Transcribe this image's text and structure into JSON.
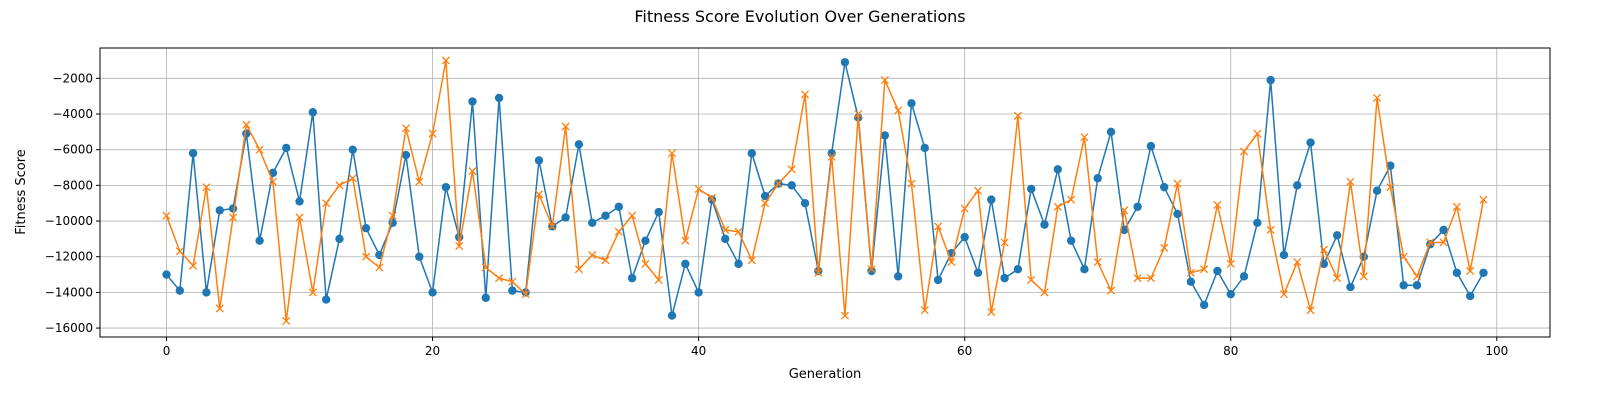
{
  "chart_data": {
    "type": "line",
    "title": "Fitness Score Evolution Over Generations",
    "xlabel": "Generation",
    "ylabel": "Fitness Score",
    "xlim": [
      -5,
      104
    ],
    "ylim": [
      -16500,
      -300
    ],
    "xticks": [
      0,
      20,
      40,
      60,
      80,
      100
    ],
    "yticks": [
      -16000,
      -14000,
      -12000,
      -10000,
      -8000,
      -6000,
      -4000,
      -2000
    ],
    "grid": true,
    "legend": "none",
    "colors": {
      "series_1": "#1f77b4",
      "series_2": "#ff7f0e",
      "grid": "#b0b0b0"
    },
    "series": [
      {
        "marker": "circle",
        "x": [
          0,
          1,
          2,
          3,
          4,
          5,
          6,
          7,
          8,
          9,
          10,
          11,
          12,
          13,
          14,
          15,
          16,
          17,
          18,
          19,
          20,
          21,
          22,
          23,
          24,
          25,
          26,
          27,
          28,
          29,
          30,
          31,
          32,
          33,
          34,
          35,
          36,
          37,
          38,
          39,
          40,
          41,
          42,
          43,
          44,
          45,
          46,
          47,
          48,
          49,
          50,
          51,
          52,
          53,
          54,
          55,
          56,
          57,
          58,
          59,
          60,
          61,
          62,
          63,
          64,
          65,
          66,
          67,
          68,
          69,
          70,
          71,
          72,
          73,
          74,
          75,
          76,
          77,
          78,
          79,
          80,
          81,
          82,
          83,
          84,
          85,
          86,
          87,
          88,
          89,
          90,
          91,
          92,
          93,
          94,
          95,
          96,
          97,
          98,
          99
        ],
        "values": [
          -13000,
          -13900,
          -6200,
          -14000,
          -9400,
          -9300,
          -5100,
          -11100,
          -7300,
          -5900,
          -8900,
          -3900,
          -14400,
          -11000,
          -6000,
          -10400,
          -11900,
          -10100,
          -6300,
          -12000,
          -14000,
          -8100,
          -10900,
          -3300,
          -14300,
          -3100,
          -13900,
          -14000,
          -6600,
          -10300,
          -9800,
          -5700,
          -10100,
          -9700,
          -9200,
          -13200,
          -11100,
          -9500,
          -15300,
          -12400,
          -14000,
          -8800,
          -11000,
          -12400,
          -6200,
          -8600,
          -7900,
          -8000,
          -9000,
          -12800,
          -6200,
          -1100,
          -4200,
          -12800,
          -5200,
          -13100,
          -3400,
          -5900,
          -13300,
          -11800,
          -10900,
          -12900,
          -8800,
          -13200,
          -12700,
          -8200,
          -10200,
          -7100,
          -11100,
          -12700,
          -7600,
          -5000,
          -10500,
          -9200,
          -5800,
          -8100,
          -9600,
          -13400,
          -14700,
          -12800,
          -14100,
          -13100,
          -10100,
          -2100,
          -11900,
          -8000,
          -5600,
          -12400,
          -10800,
          -13700,
          -12000,
          -8300,
          -6900,
          -13600,
          -13600,
          -11300,
          -10500,
          -12900,
          -14200,
          -12900
        ]
      },
      {
        "marker": "x",
        "x": [
          0,
          1,
          2,
          3,
          4,
          5,
          6,
          7,
          8,
          9,
          10,
          11,
          12,
          13,
          14,
          15,
          16,
          17,
          18,
          19,
          20,
          21,
          22,
          23,
          24,
          25,
          26,
          27,
          28,
          29,
          30,
          31,
          32,
          33,
          34,
          35,
          36,
          37,
          38,
          39,
          40,
          41,
          42,
          43,
          44,
          45,
          46,
          47,
          48,
          49,
          50,
          51,
          52,
          53,
          54,
          55,
          56,
          57,
          58,
          59,
          60,
          61,
          62,
          63,
          64,
          65,
          66,
          67,
          68,
          69,
          70,
          71,
          72,
          73,
          74,
          75,
          76,
          77,
          78,
          79,
          80,
          81,
          82,
          83,
          84,
          85,
          86,
          87,
          88,
          89,
          90,
          91,
          92,
          93,
          94,
          95,
          96,
          97,
          98,
          99
        ],
        "values": [
          -9700,
          -11700,
          -12500,
          -8100,
          -14900,
          -9800,
          -4600,
          -6000,
          -7800,
          -15600,
          -9800,
          -14000,
          -9000,
          -8000,
          -7600,
          -12000,
          -12600,
          -9700,
          -4800,
          -7800,
          -5100,
          -1000,
          -11400,
          -7200,
          -12600,
          -13200,
          -13400,
          -14100,
          -8500,
          -10300,
          -4700,
          -12700,
          -11900,
          -12200,
          -10600,
          -9700,
          -12400,
          -13300,
          -6200,
          -11100,
          -8200,
          -8700,
          -10500,
          -10600,
          -12200,
          -9000,
          -7900,
          -7100,
          -2900,
          -12900,
          -6400,
          -15300,
          -4000,
          -12700,
          -2100,
          -3800,
          -7900,
          -15000,
          -10300,
          -12300,
          -9300,
          -8300,
          -15100,
          -11200,
          -4100,
          -13300,
          -14000,
          -9200,
          -8800,
          -5300,
          -12300,
          -13900,
          -9400,
          -13200,
          -13200,
          -11500,
          -7900,
          -12900,
          -12700,
          -9100,
          -12400,
          -6100,
          -5100,
          -10500,
          -14100,
          -12300,
          -15000,
          -11600,
          -13200,
          -7800,
          -13100,
          -3100,
          -8100,
          -12000,
          -13100,
          -11200,
          -11200,
          -9200,
          -12800,
          -8800
        ]
      }
    ]
  }
}
